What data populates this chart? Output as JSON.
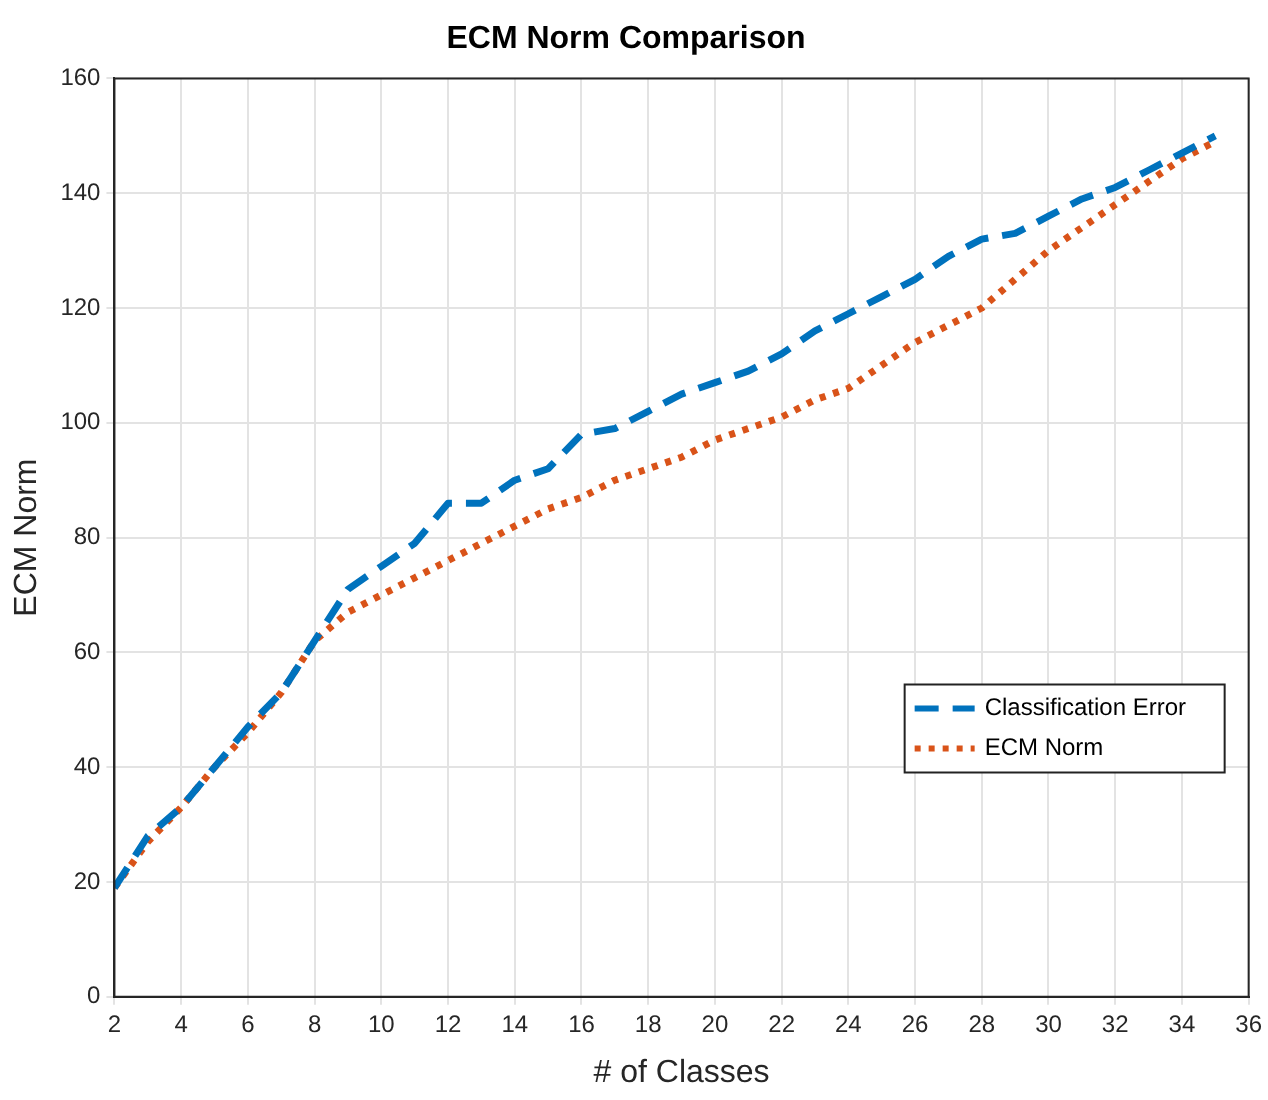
{
  "chart_data": {
    "type": "line",
    "title": "ECM Norm Comparison",
    "xlabel": "# of Classes",
    "ylabel": "ECM Norm",
    "x": [
      2,
      3,
      4,
      5,
      6,
      7,
      8,
      9,
      10,
      11,
      12,
      13,
      14,
      15,
      16,
      17,
      18,
      19,
      20,
      21,
      22,
      23,
      24,
      25,
      26,
      27,
      28,
      29,
      30,
      31,
      32,
      33,
      34,
      35
    ],
    "series": [
      {
        "name": "Classification Error",
        "color": "#0072bd",
        "line_style": "dashed",
        "values": [
          19,
          28,
          33,
          40,
          47,
          53,
          62,
          71,
          75,
          79,
          86,
          86,
          90,
          92,
          98,
          99,
          102,
          105,
          107,
          109,
          112,
          116,
          119,
          122,
          125,
          129,
          132,
          133,
          136,
          139,
          141,
          144,
          147,
          150
        ]
      },
      {
        "name": "ECM Norm",
        "color": "#d95319",
        "line_style": "dotted",
        "values": [
          19,
          27,
          33,
          40,
          46,
          53,
          62,
          67,
          70,
          73,
          76,
          79,
          82,
          85,
          87,
          90,
          92,
          94,
          97,
          99,
          101,
          104,
          106,
          110,
          114,
          117,
          120,
          125,
          130,
          134,
          138,
          142,
          146,
          149
        ]
      }
    ],
    "xlim": [
      2,
      36
    ],
    "xticks": [
      2,
      4,
      6,
      8,
      10,
      12,
      14,
      16,
      18,
      20,
      22,
      24,
      26,
      28,
      30,
      32,
      34,
      36
    ],
    "ylim": [
      0,
      160
    ],
    "yticks": [
      0,
      20,
      40,
      60,
      80,
      100,
      120,
      140,
      160
    ],
    "grid": true,
    "legend": "right",
    "marker": "none"
  }
}
